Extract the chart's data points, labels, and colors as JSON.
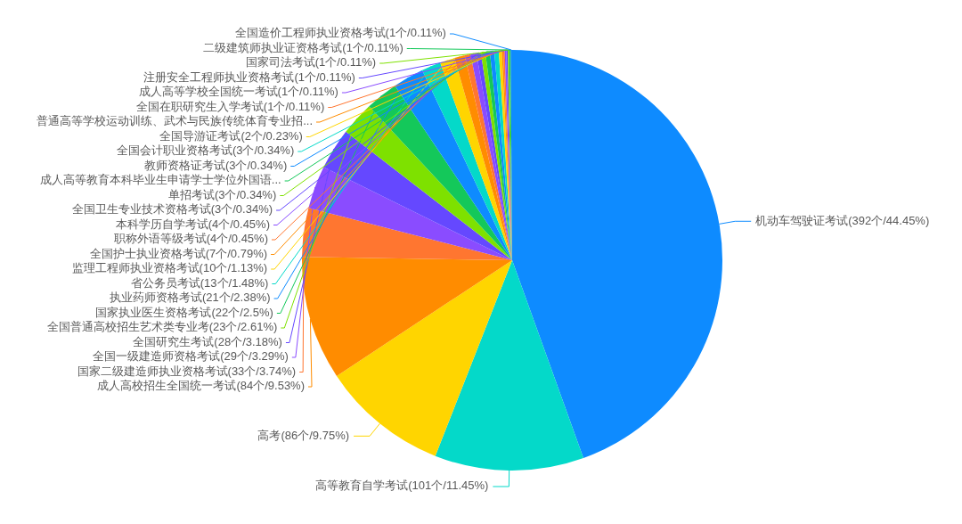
{
  "chart_data": {
    "type": "pie",
    "categories": [
      "机动车驾驶证考试(392个/44.45%)",
      "高等教育自学考试(101个/11.45%)",
      "高考(86个/9.75%)",
      "成人高校招生全国统一考试(84个/9.53%)",
      "国家二级建造师执业资格考试(33个/3.74%)",
      "全国一级建造师资格考试(29个/3.29%)",
      "全国研究生考试(28个/3.18%)",
      "全国普通高校招生艺术类专业考(23个/2.61%)",
      "国家执业医生资格考试(22个/2.5%)",
      "执业药师资格考试(21个/2.38%)",
      "省公务员考试(13个/1.48%)",
      "监理工程师执业资格考试(10个/1.13%)",
      "全国护士执业资格考试(7个/0.79%)",
      "职称外语等级考试(4个/0.45%)",
      "本科学历自学考试(4个/0.45%)",
      "全国卫生专业技术资格考试(3个/0.34%)",
      "单招考试(3个/0.34%)",
      "成人高等教育本科毕业生申请学士学位外国语...",
      "教师资格证考试(3个/0.34%)",
      "全国会计职业资格考试(3个/0.34%)",
      "全国导游证考试(2个/0.23%)",
      "普通高等学校运动训练、武术与民族传统体育专业招...",
      "全国在职研究生入学考试(1个/0.11%)",
      "成人高等学校全国统一考试(1个/0.11%)",
      "注册安全工程师执业资格考试(1个/0.11%)",
      "国家司法考试(1个/0.11%)",
      "二级建筑师执业证资格考试(1个/0.11%)",
      "全国造价工程师执业资格考试(1个/0.11%)"
    ],
    "values": [
      392,
      101,
      86,
      84,
      33,
      29,
      28,
      23,
      22,
      21,
      13,
      10,
      7,
      4,
      4,
      3,
      3,
      3,
      3,
      3,
      2,
      1,
      1,
      1,
      1,
      1,
      1,
      1
    ],
    "colors": [
      "#0e8bff",
      "#04d9c9",
      "#ffd500",
      "#ff8c00",
      "#ff7630",
      "#8a4cff",
      "#6548ff",
      "#7ee100",
      "#14c85a",
      "#0e8bff",
      "#04d9c9",
      "#ffd500",
      "#ff8c00",
      "#ff7630",
      "#8a4cff",
      "#6548ff",
      "#7ee100",
      "#14c85a",
      "#0e8bff",
      "#04d9c9",
      "#ffd500",
      "#ff8c00",
      "#ff7630",
      "#8a4cff",
      "#6548ff",
      "#7ee100",
      "#14c85a",
      "#0e8bff"
    ]
  }
}
